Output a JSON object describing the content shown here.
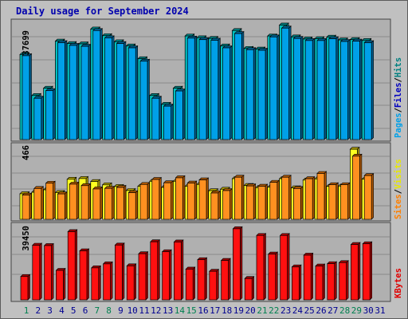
{
  "title": "Daily usage for September 2024",
  "colors": {
    "background": "#c0c0c0",
    "plot_background": "#b0b0b0",
    "grid": "#8a8a8a",
    "title": "#0000ae",
    "hits_front": "#00c0c0",
    "hits_side": "#008080",
    "files_front": "#00a0e8",
    "files_side": "#006090",
    "visits_front": "#ffff20",
    "visits_side": "#b0a000",
    "sites_front": "#ff9020",
    "sites_side": "#b05800",
    "kbytes_front": "#ff1010",
    "kbytes_side": "#a00000",
    "weekday_label": "#000090",
    "weekend_label": "#008050"
  },
  "chart_data": [
    {
      "type": "bar",
      "panel": "hits_files_pages",
      "ymax_label": "37699",
      "ylabel_parts": [
        "Pages",
        "/",
        "Files",
        "/",
        "Hits"
      ],
      "ylim": [
        0,
        38600
      ],
      "categories": [
        "1",
        "2",
        "3",
        "4",
        "5",
        "6",
        "7",
        "8",
        "9",
        "10",
        "11",
        "12",
        "13",
        "14",
        "15",
        "16",
        "17",
        "18",
        "19",
        "20",
        "21",
        "22",
        "23",
        "24",
        "25",
        "26",
        "27",
        "28",
        "29",
        "30",
        "31"
      ],
      "weekend_days": [
        "1",
        "7",
        "8",
        "14",
        "15",
        "21",
        "22",
        "28",
        "29"
      ],
      "series": [
        {
          "name": "Hits",
          "values": [
            28000,
            14500,
            16900,
            32400,
            31600,
            31500,
            36400,
            34200,
            32200,
            30800,
            26600,
            14500,
            11600,
            16900,
            34100,
            33500,
            33300,
            30800,
            35900,
            30000,
            29800,
            34100,
            37700,
            33800,
            33100,
            33200,
            33700,
            32800,
            32900,
            32600,
            0
          ]
        },
        {
          "name": "Files",
          "values": [
            27600,
            13600,
            16100,
            31900,
            31000,
            30700,
            35900,
            33500,
            31600,
            30200,
            25800,
            13600,
            11000,
            16000,
            33400,
            32900,
            32700,
            30200,
            34900,
            29600,
            29400,
            33800,
            36700,
            33300,
            32600,
            32600,
            33200,
            32300,
            32400,
            31900,
            0
          ]
        },
        {
          "name": "Pages",
          "values": [
            0,
            0,
            0,
            0,
            0,
            0,
            0,
            0,
            0,
            0,
            0,
            0,
            0,
            0,
            0,
            0,
            0,
            0,
            0,
            0,
            0,
            0,
            0,
            0,
            0,
            0,
            0,
            0,
            0,
            0,
            0
          ]
        }
      ]
    },
    {
      "type": "bar",
      "panel": "visits_sites",
      "ymax_label": "466",
      "ylabel_parts": [
        "Sites",
        "/",
        "Visits"
      ],
      "ylim": [
        0,
        488
      ],
      "categories": [
        "1",
        "2",
        "3",
        "4",
        "5",
        "6",
        "7",
        "8",
        "9",
        "10",
        "11",
        "12",
        "13",
        "14",
        "15",
        "16",
        "17",
        "18",
        "19",
        "20",
        "21",
        "22",
        "23",
        "24",
        "25",
        "26",
        "27",
        "28",
        "29",
        "30",
        "31"
      ],
      "series": [
        {
          "name": "Visits",
          "values": [
            170,
            180,
            196,
            178,
            266,
            271,
            251,
            229,
            218,
            191,
            220,
            253,
            212,
            253,
            220,
            232,
            190,
            200,
            270,
            225,
            211,
            214,
            270,
            209,
            261,
            269,
            219,
            221,
            466,
            267,
            0
          ]
        },
        {
          "name": "Sites",
          "values": [
            161,
            205,
            240,
            169,
            234,
            224,
            202,
            206,
            212,
            177,
            232,
            265,
            243,
            276,
            241,
            262,
            175,
            191,
            280,
            222,
            220,
            246,
            280,
            205,
            270,
            305,
            230,
            230,
            420,
            291,
            0
          ]
        }
      ]
    },
    {
      "type": "bar",
      "panel": "kbytes",
      "ymax_label": "39450",
      "ylabel_parts": [
        "KBytes"
      ],
      "ylim": [
        0,
        41000
      ],
      "categories": [
        "1",
        "2",
        "3",
        "4",
        "5",
        "6",
        "7",
        "8",
        "9",
        "10",
        "11",
        "12",
        "13",
        "14",
        "15",
        "16",
        "17",
        "18",
        "19",
        "20",
        "21",
        "22",
        "23",
        "24",
        "25",
        "26",
        "27",
        "28",
        "29",
        "30",
        "31"
      ],
      "series": [
        {
          "name": "KBytes",
          "values": [
            12900,
            30200,
            30000,
            16300,
            37700,
            27100,
            17700,
            19900,
            30300,
            18800,
            25500,
            32100,
            26600,
            32000,
            17000,
            22200,
            15800,
            21800,
            39300,
            11800,
            35600,
            25300,
            35600,
            18200,
            24700,
            18700,
            20000,
            20600,
            30600,
            31000,
            0
          ]
        }
      ]
    }
  ]
}
